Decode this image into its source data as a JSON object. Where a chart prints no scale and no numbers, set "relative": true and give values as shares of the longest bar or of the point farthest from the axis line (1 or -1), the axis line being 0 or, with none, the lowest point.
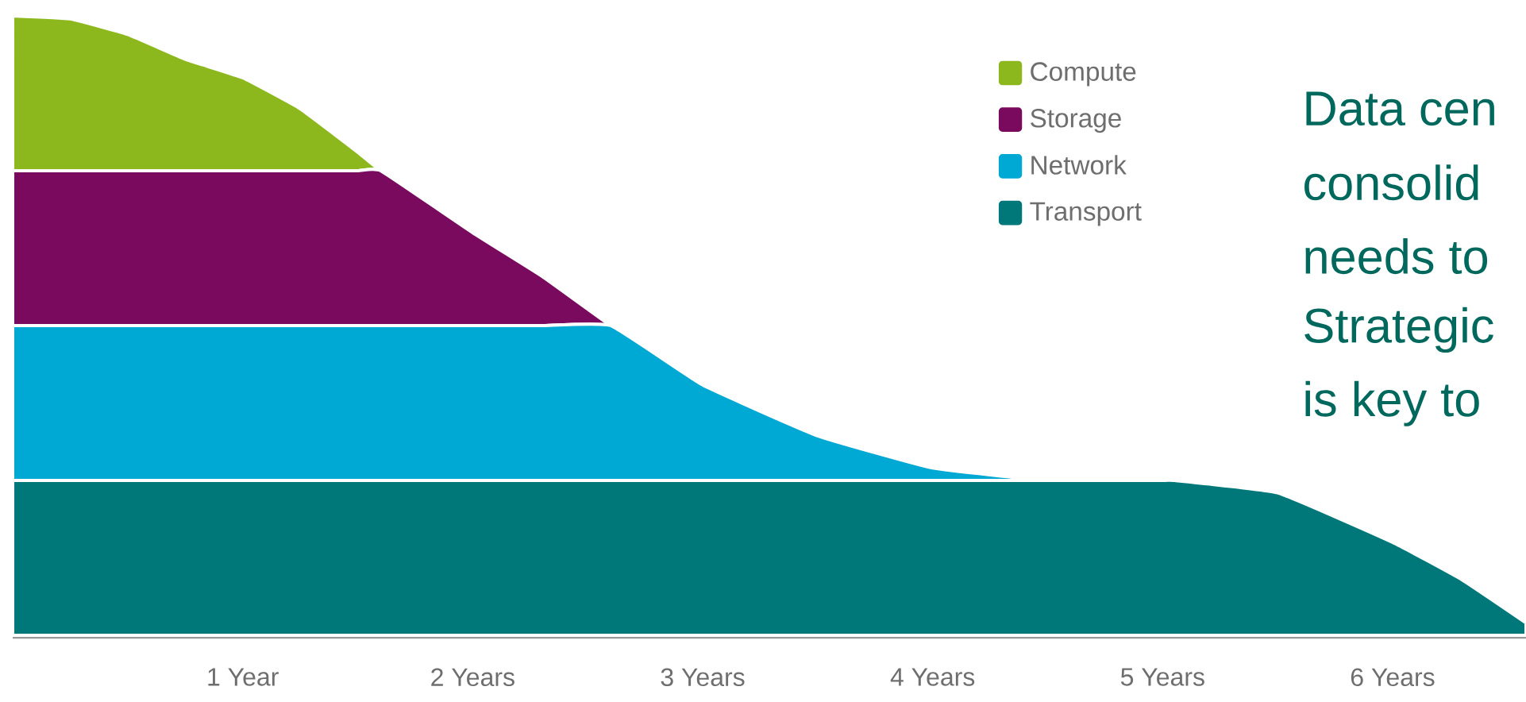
{
  "chart_data": {
    "type": "area",
    "stacked": true,
    "relative": true,
    "legend": "top right",
    "grid": false,
    "x": [
      0,
      0.25,
      0.5,
      0.75,
      1,
      1.25,
      1.5,
      1.6,
      2,
      2.3,
      2.6,
      3,
      3.5,
      4,
      4.5,
      5,
      5.05,
      5.5,
      6,
      6.3,
      6.58
    ],
    "xlim": [
      0,
      6.58
    ],
    "xticks": [
      {
        "value": 1,
        "label": "1 Year"
      },
      {
        "value": 2,
        "label": "2 Years"
      },
      {
        "value": 3,
        "label": "3 Years"
      },
      {
        "value": 4,
        "label": "4 Years"
      },
      {
        "value": 5,
        "label": "5 Years"
      },
      {
        "value": 6,
        "label": "6 Years"
      }
    ],
    "series": [
      {
        "name": "Transport",
        "color": "#00787a",
        "values": [
          0.25,
          0.25,
          0.25,
          0.25,
          0.25,
          0.25,
          0.25,
          0.25,
          0.25,
          0.25,
          0.25,
          0.25,
          0.25,
          0.25,
          0.25,
          0.25,
          0.25,
          0.23,
          0.15,
          0.09,
          0.02
        ]
      },
      {
        "name": "Network",
        "color": "#00a8d4",
        "values": [
          0.25,
          0.25,
          0.25,
          0.25,
          0.25,
          0.25,
          0.25,
          0.25,
          0.25,
          0.25,
          0.25,
          0.154,
          0.072,
          0.02,
          0,
          0,
          0,
          0,
          0,
          0,
          0
        ]
      },
      {
        "name": "Storage",
        "color": "#7a0a5e",
        "values": [
          0.25,
          0.25,
          0.25,
          0.25,
          0.25,
          0.25,
          0.25,
          0.25,
          0.15,
          0.08,
          0,
          0,
          0,
          0,
          0,
          0,
          0,
          0,
          0,
          0,
          0
        ]
      },
      {
        "name": "Compute",
        "color": "#8cb81d",
        "values": [
          0.25,
          0.245,
          0.22,
          0.18,
          0.15,
          0.1,
          0.03,
          0,
          0,
          0,
          0,
          0,
          0,
          0,
          0,
          0,
          0,
          0,
          0,
          0,
          0
        ]
      }
    ],
    "annotations": [
      "Data cen",
      "consolid",
      "needs to",
      "Strategic",
      "is key to"
    ]
  }
}
